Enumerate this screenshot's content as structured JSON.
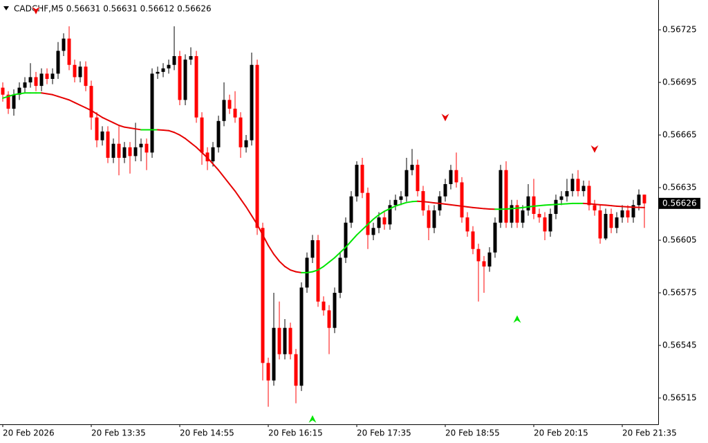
{
  "chart_data": {
    "type": "candlestick",
    "title": "CADCHF,M5 0.56631 0.56631 0.56612 0.56626",
    "open": [
      0.56692,
      0.56688,
      0.5668,
      0.56688,
      0.56692,
      0.56695,
      0.56698,
      0.56693,
      0.567,
      0.56697,
      0.567,
      0.56713,
      0.5672,
      0.56705,
      0.56698,
      0.56704,
      0.56693,
      0.56675,
      0.56662,
      0.56667,
      0.56652,
      0.5666,
      0.56652,
      0.56658,
      0.56653,
      0.56658,
      0.5666,
      0.56655,
      0.567,
      0.56701,
      0.56703,
      0.56705,
      0.5671,
      0.56685,
      0.56708,
      0.5671,
      0.56675,
      0.56655,
      0.5665,
      0.56658,
      0.56673,
      0.56685,
      0.5668,
      0.56675,
      0.56658,
      0.56662,
      0.56705,
      0.56612,
      0.56535,
      0.56525,
      0.56555,
      0.5654,
      0.56555,
      0.5654,
      0.56522,
      0.56578,
      0.56595,
      0.56605,
      0.5657,
      0.56565,
      0.56555,
      0.56575,
      0.56595,
      0.56615,
      0.5663,
      0.56648,
      0.56632,
      0.56608,
      0.56612,
      0.56618,
      0.56614,
      0.56625,
      0.56628,
      0.5663,
      0.56645,
      0.56648,
      0.56633,
      0.56622,
      0.56612,
      0.56622,
      0.5663,
      0.56637,
      0.56645,
      0.56638,
      0.56618,
      0.5661,
      0.566,
      0.56593,
      0.5659,
      0.56598,
      0.56615,
      0.56645,
      0.56615,
      0.56625,
      0.56615,
      0.56622,
      0.5663,
      0.5662,
      0.56618,
      0.5661,
      0.5662,
      0.56628,
      0.5663,
      0.56633,
      0.5664,
      0.56633,
      0.56636,
      0.56625,
      0.56622,
      0.56606,
      0.5662,
      0.56612,
      0.56618,
      0.56622,
      0.56618,
      0.56625,
      0.56631
    ],
    "high": [
      0.56695,
      0.5669,
      0.56691,
      0.56695,
      0.56698,
      0.56706,
      0.56701,
      0.56703,
      0.56703,
      0.56703,
      0.56718,
      0.56723,
      0.56727,
      0.56708,
      0.56707,
      0.56707,
      0.56696,
      0.56678,
      0.5667,
      0.5667,
      0.56663,
      0.5667,
      0.56661,
      0.56661,
      0.56672,
      0.56663,
      0.56663,
      0.56703,
      0.56704,
      0.56706,
      0.56708,
      0.56727,
      0.56713,
      0.56711,
      0.56715,
      0.56713,
      0.56678,
      0.56658,
      0.56661,
      0.56676,
      0.56695,
      0.56688,
      0.5669,
      0.56678,
      0.56665,
      0.56712,
      0.56708,
      0.56615,
      0.56538,
      0.56575,
      0.5657,
      0.5656,
      0.56558,
      0.56543,
      0.56581,
      0.56598,
      0.56608,
      0.56608,
      0.56573,
      0.56568,
      0.56578,
      0.56598,
      0.56618,
      0.56633,
      0.5665,
      0.56652,
      0.56635,
      0.56615,
      0.56621,
      0.56621,
      0.56628,
      0.56631,
      0.56633,
      0.56652,
      0.56657,
      0.56651,
      0.56636,
      0.56625,
      0.56625,
      0.56633,
      0.5664,
      0.56648,
      0.56655,
      0.56641,
      0.56621,
      0.56613,
      0.56603,
      0.56596,
      0.56601,
      0.56618,
      0.56648,
      0.5665,
      0.56628,
      0.56628,
      0.56625,
      0.56637,
      0.5664,
      0.56623,
      0.56621,
      0.56623,
      0.56631,
      0.56633,
      0.5664,
      0.56643,
      0.56645,
      0.56639,
      0.56639,
      0.56628,
      0.56625,
      0.56623,
      0.56623,
      0.56621,
      0.56625,
      0.56625,
      0.56628,
      0.56634,
      0.56631
    ],
    "low": [
      0.56684,
      0.56677,
      0.56676,
      0.56685,
      0.56689,
      0.56692,
      0.5669,
      0.5669,
      0.56694,
      0.56694,
      0.56697,
      0.5671,
      0.56702,
      0.56695,
      0.56695,
      0.5669,
      0.56668,
      0.56658,
      0.56659,
      0.56649,
      0.56649,
      0.56642,
      0.56649,
      0.56643,
      0.5665,
      0.5665,
      0.56645,
      0.56652,
      0.56697,
      0.56698,
      0.567,
      0.56702,
      0.56682,
      0.56682,
      0.56705,
      0.56672,
      0.56648,
      0.56645,
      0.56647,
      0.56655,
      0.5667,
      0.56677,
      0.56672,
      0.56652,
      0.56655,
      0.56659,
      0.56608,
      0.56525,
      0.5651,
      0.56522,
      0.56537,
      0.56537,
      0.56537,
      0.56512,
      0.56519,
      0.56575,
      0.56592,
      0.56567,
      0.56562,
      0.5654,
      0.56552,
      0.56572,
      0.56592,
      0.56612,
      0.56627,
      0.56629,
      0.566,
      0.56605,
      0.56609,
      0.56611,
      0.56611,
      0.56622,
      0.56625,
      0.56627,
      0.56642,
      0.5663,
      0.56619,
      0.56605,
      0.56609,
      0.56619,
      0.56627,
      0.56634,
      0.56635,
      0.56615,
      0.56607,
      0.56597,
      0.5657,
      0.56575,
      0.56587,
      0.56595,
      0.56612,
      0.56612,
      0.56612,
      0.56612,
      0.56612,
      0.56619,
      0.56617,
      0.56615,
      0.56605,
      0.56607,
      0.56617,
      0.56625,
      0.56627,
      0.5663,
      0.5663,
      0.5663,
      0.56622,
      0.56619,
      0.56603,
      0.56605,
      0.56609,
      0.56609,
      0.56615,
      0.56615,
      0.56615,
      0.56622,
      0.56612
    ],
    "close": [
      0.56688,
      0.5668,
      0.56688,
      0.56692,
      0.56695,
      0.56698,
      0.56693,
      0.567,
      0.56697,
      0.567,
      0.56713,
      0.5672,
      0.56705,
      0.56698,
      0.56704,
      0.56693,
      0.56675,
      0.56662,
      0.56667,
      0.56652,
      0.5666,
      0.56652,
      0.56658,
      0.56653,
      0.56658,
      0.5666,
      0.56655,
      0.567,
      0.56701,
      0.56703,
      0.56705,
      0.5671,
      0.56685,
      0.56708,
      0.5671,
      0.56675,
      0.56655,
      0.5665,
      0.56658,
      0.56673,
      0.56685,
      0.5668,
      0.56675,
      0.56658,
      0.56662,
      0.56705,
      0.56612,
      0.56535,
      0.56525,
      0.56555,
      0.5654,
      0.56555,
      0.5654,
      0.56522,
      0.56578,
      0.56595,
      0.56605,
      0.5657,
      0.56565,
      0.56555,
      0.56575,
      0.56595,
      0.56615,
      0.5663,
      0.56648,
      0.56632,
      0.56608,
      0.56612,
      0.56618,
      0.56614,
      0.56625,
      0.56628,
      0.5663,
      0.56645,
      0.56648,
      0.56633,
      0.56622,
      0.56612,
      0.56622,
      0.5663,
      0.56637,
      0.56645,
      0.56638,
      0.56618,
      0.5661,
      0.566,
      0.56593,
      0.5659,
      0.56598,
      0.56615,
      0.56645,
      0.56615,
      0.56625,
      0.56615,
      0.56622,
      0.5663,
      0.5662,
      0.56618,
      0.5661,
      0.5662,
      0.56628,
      0.5663,
      0.56633,
      0.5664,
      0.56633,
      0.56636,
      0.56625,
      0.56622,
      0.56606,
      0.5662,
      0.56612,
      0.56618,
      0.56622,
      0.56618,
      0.56625,
      0.56631,
      0.56626
    ],
    "ma": [
      0.56686,
      0.56687,
      0.56688,
      0.566885,
      0.56689,
      0.56689,
      0.56689,
      0.56689,
      0.566885,
      0.56688,
      0.56687,
      0.56686,
      0.56685,
      0.566835,
      0.56682,
      0.566805,
      0.56679,
      0.56677,
      0.56675,
      0.566735,
      0.56672,
      0.566705,
      0.566695,
      0.56669,
      0.566685,
      0.56668,
      0.56668,
      0.56668,
      0.56668,
      0.566678,
      0.566675,
      0.566665,
      0.56665,
      0.56663,
      0.566605,
      0.56658,
      0.56655,
      0.56652,
      0.566485,
      0.56645,
      0.56641,
      0.56637,
      0.56633,
      0.566285,
      0.56624,
      0.56619,
      0.56614,
      0.56608,
      0.56602,
      0.56597,
      0.56593,
      0.5659,
      0.56588,
      0.56587,
      0.565865,
      0.565865,
      0.56587,
      0.56588,
      0.5659,
      0.565925,
      0.56595,
      0.56598,
      0.56601,
      0.566045,
      0.56608,
      0.56611,
      0.56614,
      0.56617,
      0.566195,
      0.566215,
      0.56623,
      0.566245,
      0.566255,
      0.566265,
      0.56627,
      0.566272,
      0.56627,
      0.566267,
      0.566263,
      0.56626,
      0.566256,
      0.566252,
      0.566248,
      0.566244,
      0.56624,
      0.566236,
      0.566233,
      0.56623,
      0.566228,
      0.566227,
      0.566227,
      0.566228,
      0.56623,
      0.566233,
      0.566236,
      0.56624,
      0.566244,
      0.566247,
      0.56625,
      0.566252,
      0.566254,
      0.566256,
      0.566258,
      0.56626,
      0.56626,
      0.56626,
      0.566258,
      0.566255,
      0.566252,
      0.56625,
      0.566247,
      0.566244,
      0.566242,
      0.56624,
      0.566238,
      0.566237,
      0.566236
    ],
    "up_color": "#000000",
    "down_color": "#ff0000",
    "ma_up_color": "#00e600",
    "ma_down_color": "#e60000",
    "signals": [
      {
        "direction": "down",
        "index": 6,
        "price": 0.56736
      },
      {
        "direction": "down",
        "index": 80,
        "price": 0.56675
      },
      {
        "direction": "down",
        "index": 107,
        "price": 0.56657
      },
      {
        "direction": "up",
        "index": 93,
        "price": 0.5656
      },
      {
        "direction": "up",
        "index": 56,
        "price": 0.56503
      }
    ],
    "last_price": 0.56626,
    "ylim": [
      0.565,
      0.56742
    ],
    "yticks": [
      0.56515,
      0.56545,
      0.56575,
      0.56605,
      0.56635,
      0.56665,
      0.56695,
      0.56725
    ],
    "xticks": [
      {
        "value": 0,
        "label": "20 Feb 2026"
      },
      {
        "value": 16,
        "label": "20 Feb 13:35"
      },
      {
        "value": 32,
        "label": "20 Feb 14:55"
      },
      {
        "value": 48,
        "label": "20 Feb 16:15"
      },
      {
        "value": 64,
        "label": "20 Feb 17:35"
      },
      {
        "value": 80,
        "label": "20 Feb 18:55"
      },
      {
        "value": 96,
        "label": "20 Feb 20:15"
      },
      {
        "value": 112,
        "label": "20 Feb 21:35"
      }
    ]
  }
}
